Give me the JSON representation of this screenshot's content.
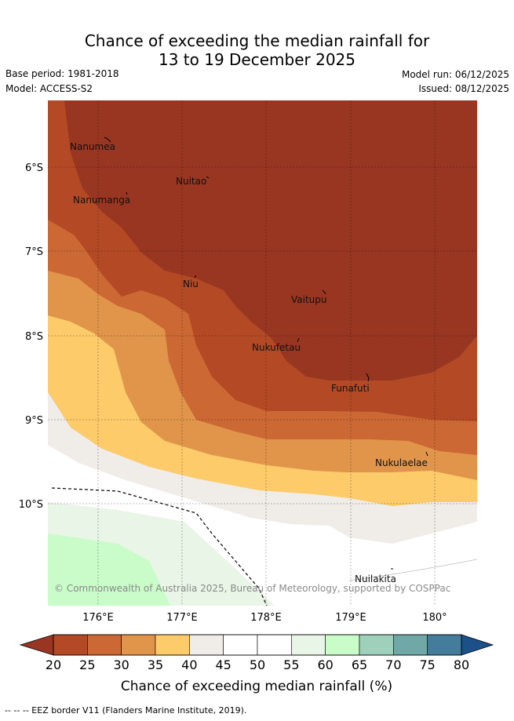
{
  "title": {
    "line1": "Chance of exceeding the median rainfall for",
    "line2": "13 to 19 December 2025"
  },
  "info": {
    "base_period": "Base period: 1981-2018",
    "model": "Model: ACCESS-S2",
    "model_run": "Model run: 06/12/2025",
    "issued": "Issued: 08/12/2025"
  },
  "map": {
    "lat_labels": [
      "6°S",
      "7°S",
      "8°S",
      "9°S",
      "10°S"
    ],
    "lon_labels": [
      "176°E",
      "177°E",
      "178°E",
      "179°E",
      "180°"
    ],
    "places": [
      {
        "name": "Nanumea"
      },
      {
        "name": "Nuitao"
      },
      {
        "name": "Nanumanga"
      },
      {
        "name": "Niu"
      },
      {
        "name": "Vaitupu"
      },
      {
        "name": "Nukufetau"
      },
      {
        "name": "Funafuti"
      },
      {
        "name": "Nukulaelae"
      },
      {
        "name": "Nuilakita"
      }
    ],
    "copyright": "© Commonwealth of Australia 2025, Bureau of Meteorology, supported by COSPPac"
  },
  "colorbar": {
    "ticks": [
      "20",
      "25",
      "30",
      "35",
      "40",
      "45",
      "50",
      "55",
      "60",
      "65",
      "70",
      "75",
      "80"
    ],
    "colors": [
      "#b34a25",
      "#cc6834",
      "#e0954a",
      "#fdcb6a",
      "#f0ece8",
      "#ffffff",
      "#ffffff",
      "#e9f5e6",
      "#c9fcc9",
      "#9fd0bb",
      "#70a8a8",
      "#447c9c"
    ],
    "low_extend_color": "#993622",
    "high_extend_color": "#1c5088",
    "label": "Chance of exceeding median rainfall (%)"
  },
  "footer": "--  --  -- EEZ border V11 (Flanders Marine Institute, 2019)."
}
